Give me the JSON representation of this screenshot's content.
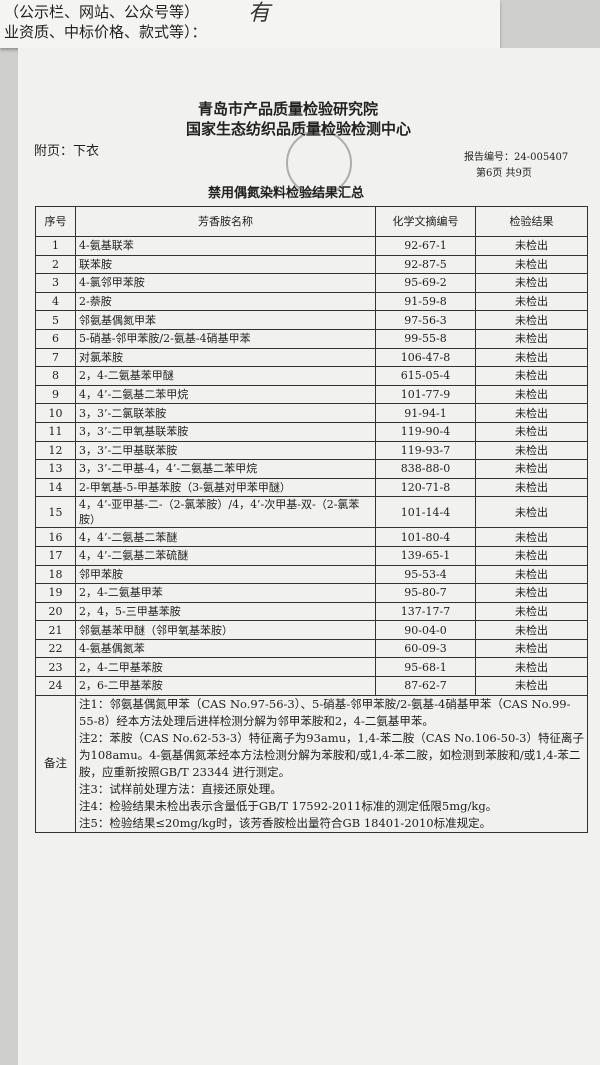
{
  "top_note": [
    "（公示栏、网站、公众号等）",
    "业资质、中标价格、款式等）：",
    "有"
  ],
  "header": {
    "institute": "青岛市产品质量检验研究院",
    "center": "国家生态纺织品质量检验检测中心",
    "attachment": "附页：下衣",
    "report_no": "报告编号：24-005407",
    "page": "第6页 共9页"
  },
  "title": "禁用偶氮染料检验结果汇总",
  "table": {
    "columns": [
      "序号",
      "芳香胺名称",
      "化学文摘编号",
      "检验结果"
    ],
    "rows": [
      [
        "1",
        "4-氨基联苯",
        "92-67-1",
        "未检出"
      ],
      [
        "2",
        "联苯胺",
        "92-87-5",
        "未检出"
      ],
      [
        "3",
        "4-氯邻甲苯胺",
        "95-69-2",
        "未检出"
      ],
      [
        "4",
        "2-萘胺",
        "91-59-8",
        "未检出"
      ],
      [
        "5",
        "邻氨基偶氮甲苯",
        "97-56-3",
        "未检出"
      ],
      [
        "6",
        "5-硝基-邻甲苯胺/2-氨基-4硝基甲苯",
        "99-55-8",
        "未检出"
      ],
      [
        "7",
        "对氯苯胺",
        "106-47-8",
        "未检出"
      ],
      [
        "8",
        "2，4-二氨基苯甲醚",
        "615-05-4",
        "未检出"
      ],
      [
        "9",
        "4，4’-二氨基二苯甲烷",
        "101-77-9",
        "未检出"
      ],
      [
        "10",
        "3，3’-二氯联苯胺",
        "91-94-1",
        "未检出"
      ],
      [
        "11",
        "3，3’-二甲氧基联苯胺",
        "119-90-4",
        "未检出"
      ],
      [
        "12",
        "3，3’-二甲基联苯胺",
        "119-93-7",
        "未检出"
      ],
      [
        "13",
        "3，3’-二甲基-4，4’-二氨基二苯甲烷",
        "838-88-0",
        "未检出"
      ],
      [
        "14",
        "2-甲氧基-5-甲基苯胺（3-氨基对甲苯甲醚）",
        "120-71-8",
        "未检出"
      ],
      [
        "15",
        "4，4’-亚甲基-二-（2-氯苯胺）/4，4’-次甲基-双-（2-氯苯胺）",
        "101-14-4",
        "未检出"
      ],
      [
        "16",
        "4，4’-二氨基二苯醚",
        "101-80-4",
        "未检出"
      ],
      [
        "17",
        "4，4’-二氨基二苯硫醚",
        "139-65-1",
        "未检出"
      ],
      [
        "18",
        "邻甲苯胺",
        "95-53-4",
        "未检出"
      ],
      [
        "19",
        "2，4-二氨基甲苯",
        "95-80-7",
        "未检出"
      ],
      [
        "20",
        "2，4，5-三甲基苯胺",
        "137-17-7",
        "未检出"
      ],
      [
        "21",
        "邻氨基苯甲醚（邻甲氧基苯胺）",
        "90-04-0",
        "未检出"
      ],
      [
        "22",
        "4-氨基偶氮苯",
        "60-09-3",
        "未检出"
      ],
      [
        "23",
        "2，4-二甲基苯胺",
        "95-68-1",
        "未检出"
      ],
      [
        "24",
        "2，6-二甲基苯胺",
        "87-62-7",
        "未检出"
      ]
    ]
  },
  "notes": {
    "label": "备注",
    "items": [
      "注1：邻氨基偶氮甲苯（CAS No.97-56-3）、5-硝基-邻甲苯胺/2-氨基-4硝基甲苯（CAS No.99-55-8）经本方法处理后进样检测分解为邻甲苯胺和2，4-二氨基甲苯。",
      "注2：苯胺（CAS No.62-53-3）特征离子为93amu，1,4-苯二胺（CAS No.106-50-3）特征离子为108amu。4-氨基偶氮苯经本方法检测分解为苯胺和/或1,4-苯二胺，如检测到苯胺和/或1,4-苯二胺，应重新按照GB/T 23344 进行测定。",
      "注3：试样前处理方法：直接还原处理。",
      "注4：检验结果未检出表示含量低于GB/T 17592-2011标准的测定低限5mg/kg。",
      "注5：检验结果≤20mg/kg时，该芳香胺检出量符合GB 18401-2010标准规定。"
    ]
  }
}
